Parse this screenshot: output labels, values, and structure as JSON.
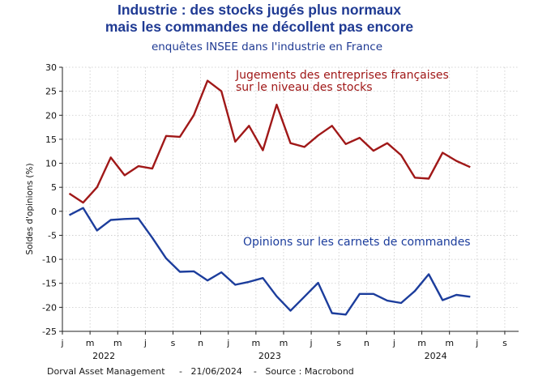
{
  "chart_data": {
    "type": "line",
    "title_line1": "Industrie : des stocks jugés plus normaux",
    "title_line2": "mais les commandes ne décollent pas encore",
    "subtitle": "enquêtes INSEE dans l'industrie en France",
    "ylabel": "Soldes d'opinions (%)",
    "ylim": [
      -25,
      30
    ],
    "yticks": [
      30,
      25,
      20,
      15,
      10,
      5,
      0,
      -5,
      -10,
      -15,
      -20,
      -25
    ],
    "month_labels": [
      "j",
      "m",
      "m",
      "j",
      "s",
      "n",
      "j",
      "m",
      "m",
      "j",
      "s",
      "n",
      "j",
      "m",
      "m",
      "j",
      "s"
    ],
    "year_labels": [
      {
        "label": "2022",
        "month_index": 3
      },
      {
        "label": "2023",
        "month_index": 15
      },
      {
        "label": "2024",
        "month_index": 27
      }
    ],
    "series": [
      {
        "name": "Jugements des entreprises françaises sur le niveau des stocks",
        "label_lines": [
          "Jugements des entreprises françaises",
          "sur le niveau des stocks"
        ],
        "color": "#a01818",
        "values": [
          3.7,
          1.8,
          5.0,
          11.2,
          7.5,
          9.4,
          8.9,
          15.7,
          15.5,
          20.0,
          27.2,
          25.0,
          14.5,
          17.8,
          12.7,
          22.2,
          14.2,
          13.4,
          15.8,
          17.8,
          14.0,
          15.3,
          12.6,
          14.2,
          11.7,
          7.0,
          6.8,
          12.2,
          10.5,
          9.2
        ]
      },
      {
        "name": "Opinions sur les carnets de commandes",
        "label_lines": [
          "Opinions sur les carnets de commandes"
        ],
        "color": "#1c3d9c",
        "values": [
          -0.8,
          0.7,
          -4.0,
          -1.8,
          -1.6,
          -1.5,
          -5.5,
          -9.8,
          -12.6,
          -12.5,
          -14.4,
          -12.7,
          -15.3,
          -14.7,
          -13.9,
          -17.7,
          -20.7,
          -17.8,
          -14.9,
          -21.2,
          -21.5,
          -17.2,
          -17.2,
          -18.6,
          -19.1,
          -16.6,
          -13.1,
          -18.5,
          -17.4,
          -17.8
        ]
      }
    ]
  },
  "footer": {
    "source": "Dorval Asset Management     -   21/06/2024    -   Source : Macrobond"
  }
}
